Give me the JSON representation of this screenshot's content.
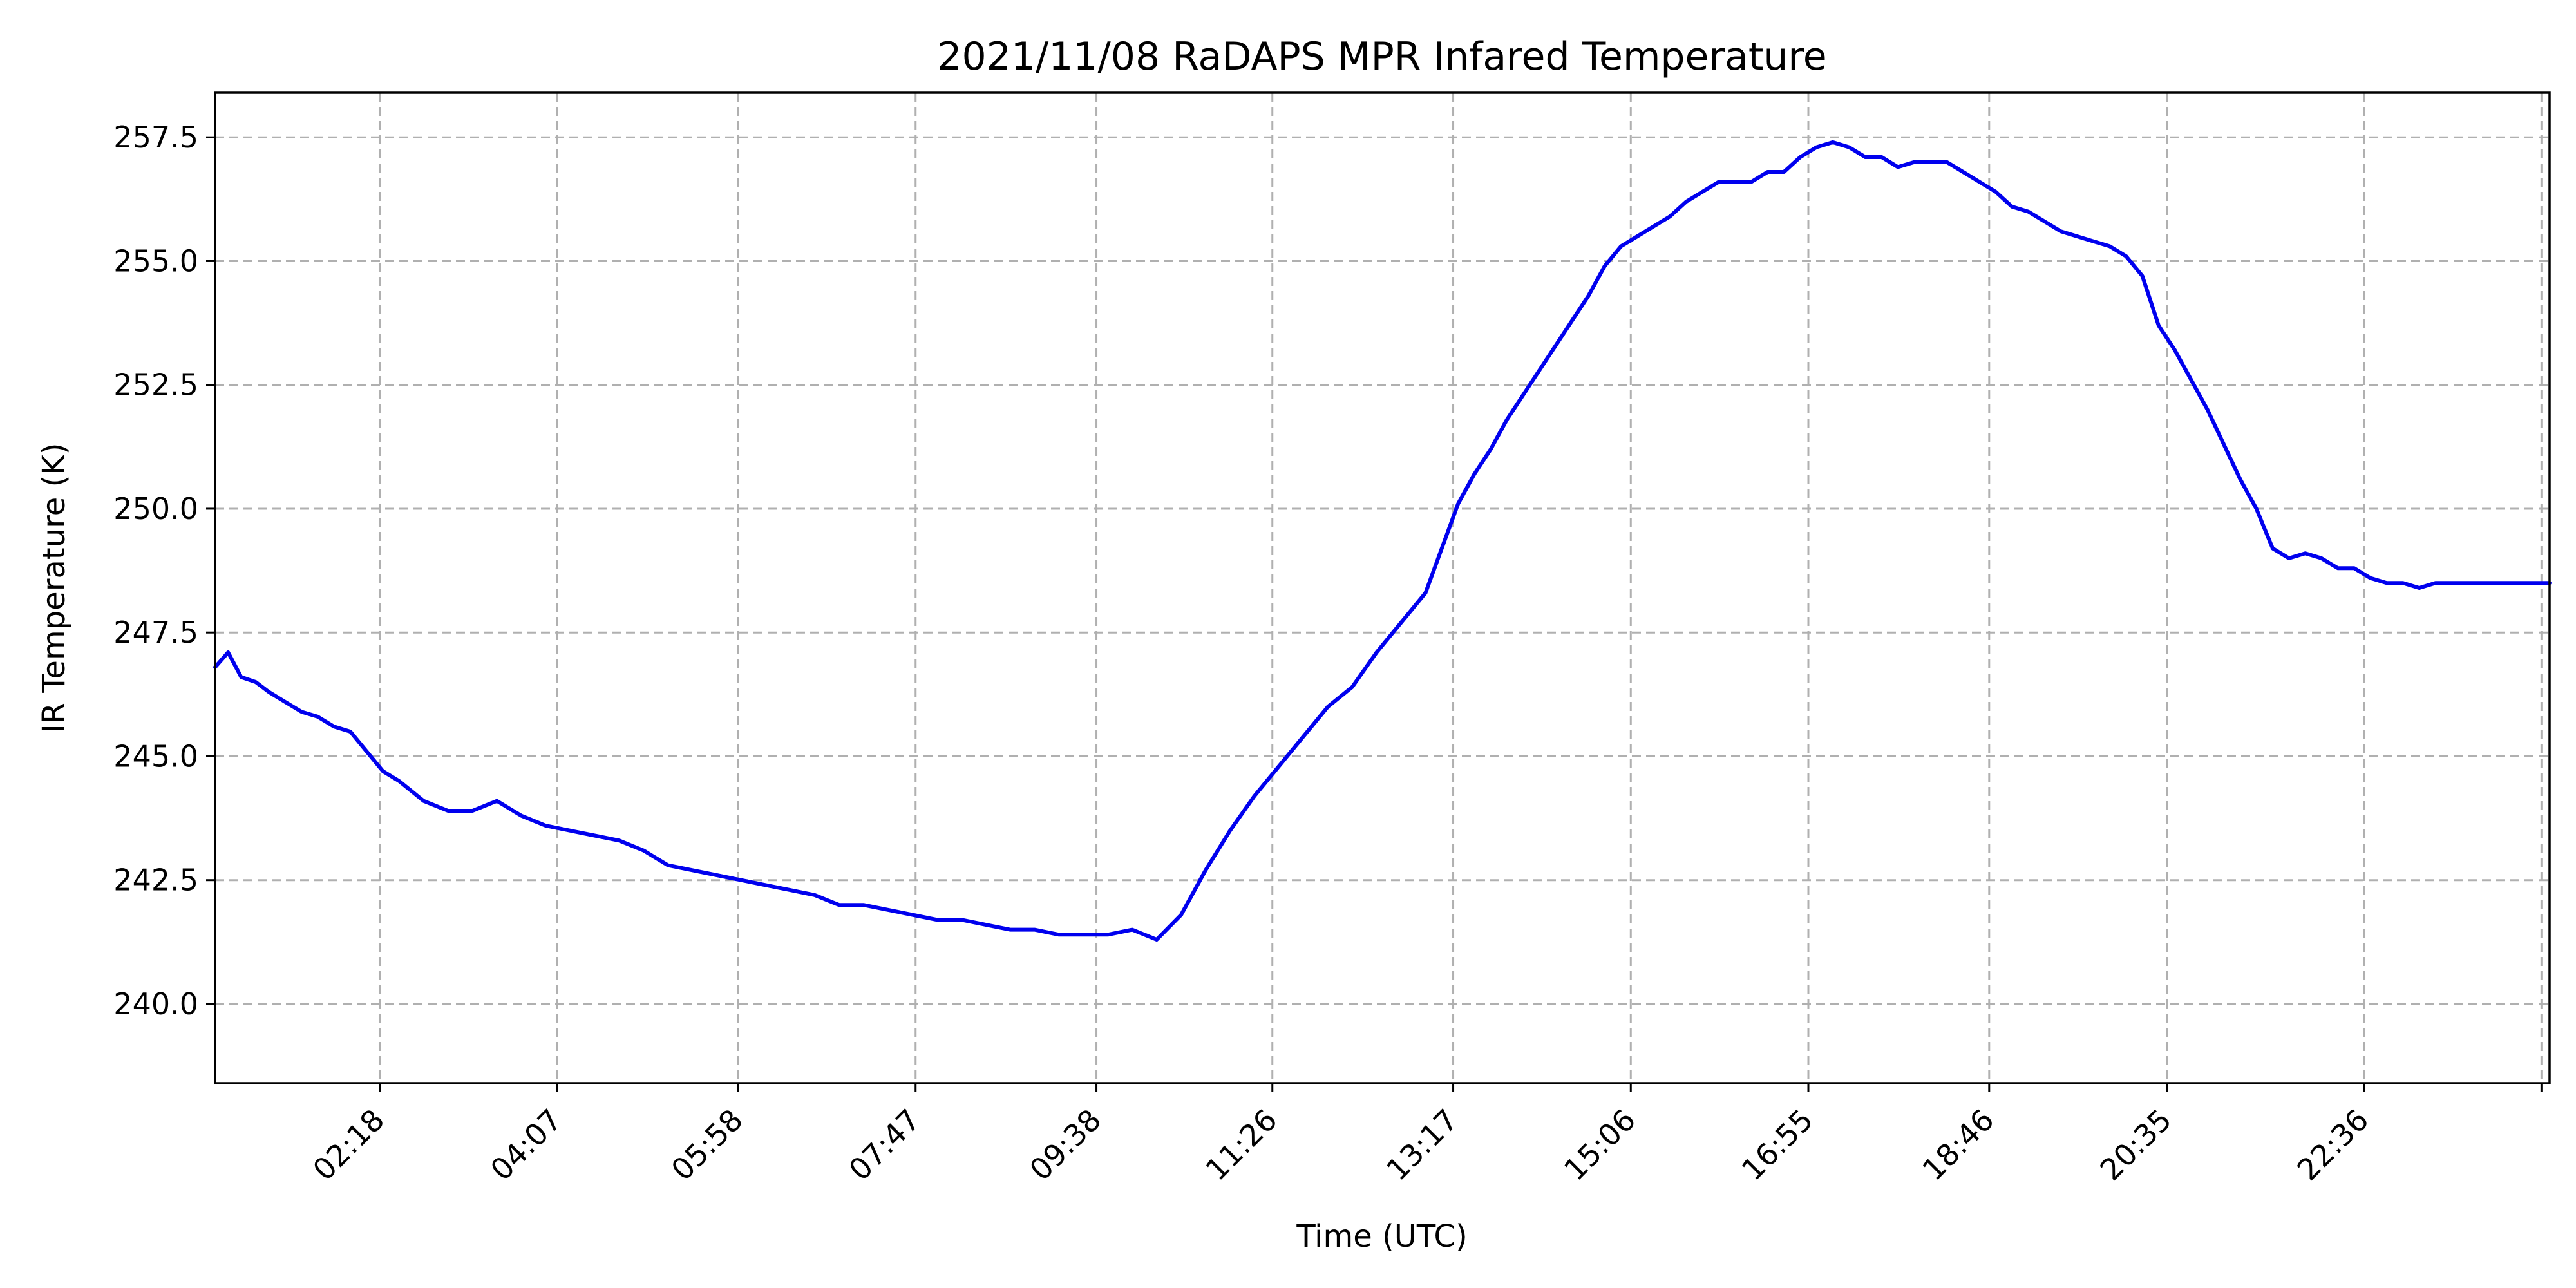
{
  "chart_data": {
    "type": "line",
    "title": "2021/11/08 RaDAPS MPR Infared Temperature",
    "xlabel": "Time (UTC)",
    "ylabel": "IR Temperature (K)",
    "x_unit": "minutes since 00:00 UTC",
    "xlim": [
      37,
      1470
    ],
    "ylim": [
      238.4,
      258.4
    ],
    "x_ticks": [
      {
        "value": 138,
        "label": "02:18"
      },
      {
        "value": 247,
        "label": "04:07"
      },
      {
        "value": 358,
        "label": "05:58"
      },
      {
        "value": 467,
        "label": "07:47"
      },
      {
        "value": 578,
        "label": "09:38"
      },
      {
        "value": 686,
        "label": "11:26"
      },
      {
        "value": 797,
        "label": "13:17"
      },
      {
        "value": 906,
        "label": "15:06"
      },
      {
        "value": 1015,
        "label": "16:55"
      },
      {
        "value": 1126,
        "label": "18:46"
      },
      {
        "value": 1235,
        "label": "20:35"
      },
      {
        "value": 1356,
        "label": "22:36"
      },
      {
        "value": 1465,
        "label": ""
      }
    ],
    "y_ticks": [
      {
        "value": 240.0,
        "label": "240.0"
      },
      {
        "value": 242.5,
        "label": "242.5"
      },
      {
        "value": 245.0,
        "label": "245.0"
      },
      {
        "value": 247.5,
        "label": "247.5"
      },
      {
        "value": 250.0,
        "label": "250.0"
      },
      {
        "value": 252.5,
        "label": "252.5"
      },
      {
        "value": 255.0,
        "label": "255.0"
      },
      {
        "value": 257.5,
        "label": "257.5"
      }
    ],
    "grid": true,
    "series": [
      {
        "color": "#0000ee",
        "x": [
          37,
          45,
          53,
          62,
          70,
          80,
          90,
          100,
          110,
          120,
          130,
          140,
          150,
          165,
          180,
          195,
          210,
          225,
          240,
          255,
          270,
          285,
          300,
          315,
          330,
          345,
          360,
          375,
          390,
          405,
          420,
          435,
          450,
          465,
          480,
          495,
          510,
          525,
          540,
          555,
          570,
          585,
          600,
          615,
          630,
          645,
          660,
          675,
          690,
          705,
          720,
          735,
          750,
          765,
          780,
          790,
          800,
          810,
          820,
          830,
          840,
          850,
          860,
          870,
          880,
          890,
          900,
          910,
          920,
          930,
          940,
          950,
          960,
          970,
          980,
          990,
          1000,
          1010,
          1020,
          1030,
          1040,
          1050,
          1060,
          1070,
          1080,
          1090,
          1100,
          1110,
          1120,
          1130,
          1140,
          1150,
          1160,
          1170,
          1180,
          1190,
          1200,
          1210,
          1220,
          1230,
          1240,
          1250,
          1260,
          1270,
          1280,
          1290,
          1300,
          1310,
          1320,
          1330,
          1340,
          1350,
          1360,
          1370,
          1380,
          1390,
          1400,
          1410,
          1420,
          1430,
          1440,
          1450,
          1460,
          1470
        ],
        "y": [
          246.8,
          247.1,
          246.6,
          246.5,
          246.3,
          246.1,
          245.9,
          245.8,
          245.6,
          245.5,
          245.1,
          244.7,
          244.5,
          244.1,
          243.9,
          243.9,
          244.1,
          243.8,
          243.6,
          243.5,
          243.4,
          243.3,
          243.1,
          242.8,
          242.7,
          242.6,
          242.5,
          242.4,
          242.3,
          242.2,
          242.0,
          242.0,
          241.9,
          241.8,
          241.7,
          241.7,
          241.6,
          241.5,
          241.5,
          241.4,
          241.4,
          241.4,
          241.5,
          241.3,
          241.8,
          242.7,
          243.5,
          244.2,
          244.8,
          245.4,
          246.0,
          246.4,
          247.1,
          247.7,
          248.3,
          249.2,
          250.1,
          250.7,
          251.2,
          251.8,
          252.3,
          252.8,
          253.3,
          253.8,
          254.3,
          254.9,
          255.3,
          255.5,
          255.7,
          255.9,
          256.2,
          256.4,
          256.6,
          256.6,
          256.6,
          256.8,
          256.8,
          257.1,
          257.3,
          257.4,
          257.3,
          257.1,
          257.1,
          256.9,
          257.0,
          257.0,
          257.0,
          256.8,
          256.6,
          256.4,
          256.1,
          256.0,
          255.8,
          255.6,
          255.5,
          255.4,
          255.3,
          255.1,
          254.7,
          253.7,
          253.2,
          252.6,
          252.0,
          251.3,
          250.6,
          250.0,
          249.2,
          249.0,
          249.1,
          249.0,
          248.8,
          248.8,
          248.6,
          248.5,
          248.5,
          248.4,
          248.5,
          248.5,
          248.5,
          248.5,
          248.5,
          248.5,
          248.5,
          248.5
        ]
      }
    ]
  }
}
